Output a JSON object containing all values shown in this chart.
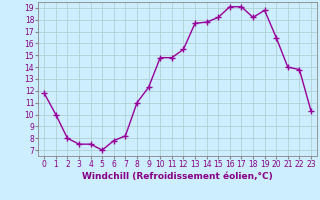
{
  "x": [
    0,
    1,
    2,
    3,
    4,
    5,
    6,
    7,
    8,
    9,
    10,
    11,
    12,
    13,
    14,
    15,
    16,
    17,
    18,
    19,
    20,
    21,
    22,
    23
  ],
  "y": [
    11.8,
    10.0,
    8.0,
    7.5,
    7.5,
    7.0,
    7.8,
    8.2,
    11.0,
    12.3,
    14.8,
    14.8,
    15.5,
    17.7,
    17.8,
    18.2,
    19.1,
    19.1,
    18.2,
    18.8,
    16.5,
    14.0,
    13.8,
    10.3
  ],
  "line_color": "#990099",
  "marker": "+",
  "marker_size": 4,
  "marker_lw": 1.0,
  "line_width": 1.0,
  "bg_color": "#cceeff",
  "grid_color": "#aacccc",
  "xlabel": "Windchill (Refroidissement éolien,°C)",
  "xlim": [
    -0.5,
    23.5
  ],
  "ylim": [
    6.5,
    19.5
  ],
  "yticks": [
    7,
    8,
    9,
    10,
    11,
    12,
    13,
    14,
    15,
    16,
    17,
    18,
    19
  ],
  "xticks": [
    0,
    1,
    2,
    3,
    4,
    5,
    6,
    7,
    8,
    9,
    10,
    11,
    12,
    13,
    14,
    15,
    16,
    17,
    18,
    19,
    20,
    21,
    22,
    23
  ],
  "tick_fontsize": 5.5,
  "xlabel_fontsize": 6.5,
  "axis_color": "#880088",
  "spine_color": "#888888"
}
